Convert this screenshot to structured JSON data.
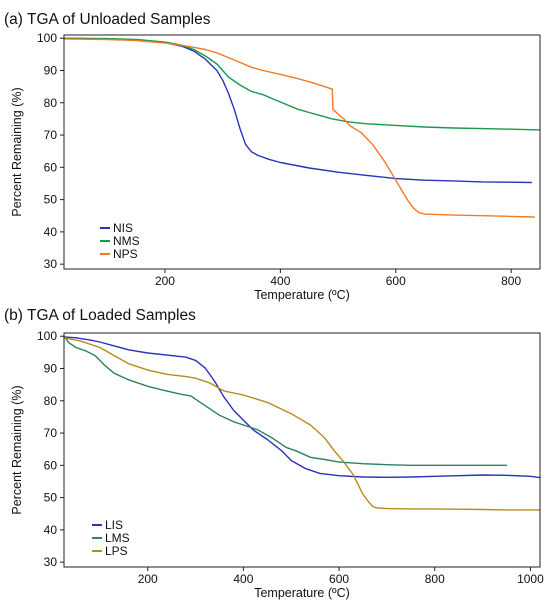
{
  "chart_data": [
    {
      "type": "line",
      "title": "(a) TGA of Unloaded Samples",
      "xlabel": "Temperature (ºC)",
      "ylabel": "Percent Remaining (%)",
      "xlim": [
        25,
        850
      ],
      "ylim": [
        28.5,
        101
      ],
      "xticks": [
        200,
        400,
        600,
        800
      ],
      "yticks": [
        30,
        40,
        50,
        60,
        70,
        80,
        90,
        100
      ],
      "grid": false,
      "legend_position": "bottom-left",
      "series": [
        {
          "name": "NIS",
          "color": "#2a33b8",
          "x": [
            25,
            100,
            150,
            200,
            230,
            250,
            270,
            290,
            300,
            310,
            320,
            330,
            340,
            350,
            360,
            380,
            400,
            450,
            500,
            550,
            600,
            650,
            700,
            750,
            800,
            835
          ],
          "y": [
            100,
            99.8,
            99.5,
            98.6,
            97.5,
            96,
            93.5,
            90,
            87,
            83,
            78,
            72,
            67,
            64.8,
            63.8,
            62.5,
            61.5,
            59.8,
            58.5,
            57.5,
            56.5,
            56,
            55.8,
            55.5,
            55.4,
            55.3
          ]
        },
        {
          "name": "NMS",
          "color": "#159a4f",
          "x": [
            25,
            100,
            150,
            200,
            230,
            250,
            270,
            290,
            300,
            310,
            330,
            350,
            370,
            390,
            410,
            430,
            450,
            470,
            490,
            520,
            550,
            600,
            650,
            700,
            750,
            800,
            850
          ],
          "y": [
            100,
            99.9,
            99.6,
            98.8,
            97.8,
            96.5,
            94.5,
            92,
            90,
            88,
            85.5,
            83.5,
            82.5,
            81,
            79.5,
            78,
            77,
            76,
            75,
            74,
            73.5,
            73,
            72.5,
            72.2,
            72,
            71.8,
            71.6
          ]
        },
        {
          "name": "NPS",
          "color": "#f07a2a",
          "x": [
            25,
            100,
            150,
            200,
            240,
            270,
            290,
            310,
            330,
            350,
            370,
            400,
            430,
            460,
            490,
            491,
            500,
            510,
            520,
            530,
            540,
            560,
            580,
            600,
            610,
            620,
            630,
            640,
            650,
            700,
            750,
            800,
            840
          ],
          "y": [
            99.8,
            99.6,
            99.3,
            98.5,
            97.5,
            96.5,
            95.5,
            94,
            92.5,
            91,
            90,
            88.8,
            87.5,
            86,
            84.2,
            78,
            76.5,
            75,
            73,
            71.8,
            70.8,
            67,
            62,
            56,
            53,
            50,
            47.5,
            46,
            45.5,
            45.2,
            45,
            44.8,
            44.6
          ]
        }
      ]
    },
    {
      "type": "line",
      "title": "(b) TGA of Loaded Samples",
      "xlabel": "Temperature (ºC)",
      "ylabel": "Percent Remaining (%)",
      "xlim": [
        25,
        1020
      ],
      "ylim": [
        28.5,
        101
      ],
      "xticks": [
        200,
        400,
        600,
        800,
        1000
      ],
      "yticks": [
        30,
        40,
        50,
        60,
        70,
        80,
        90,
        100
      ],
      "grid": false,
      "legend_position": "bottom-left",
      "series": [
        {
          "name": "LIS",
          "color": "#2a33b8",
          "x": [
            25,
            50,
            80,
            100,
            130,
            160,
            200,
            250,
            280,
            300,
            320,
            340,
            360,
            380,
            400,
            420,
            450,
            480,
            500,
            530,
            560,
            600,
            650,
            700,
            750,
            800,
            850,
            900,
            950,
            1000,
            1020
          ],
          "y": [
            99.8,
            99.5,
            98.8,
            98.2,
            97,
            95.8,
            94.8,
            94,
            93.5,
            92.5,
            90.2,
            86,
            81,
            77,
            74,
            71,
            68,
            64.5,
            61.5,
            59,
            57.5,
            56.8,
            56.4,
            56.3,
            56.4,
            56.6,
            56.8,
            57,
            56.9,
            56.6,
            56.2
          ]
        },
        {
          "name": "LMS",
          "color": "#2e8066",
          "x": [
            25,
            35,
            50,
            70,
            90,
            110,
            130,
            160,
            200,
            240,
            270,
            290,
            310,
            330,
            350,
            380,
            400,
            430,
            460,
            490,
            510,
            540,
            570,
            600,
            650,
            700,
            750,
            800,
            850,
            900,
            950
          ],
          "y": [
            100,
            98,
            96.5,
            95.5,
            94,
            91,
            88.5,
            86.5,
            84.5,
            83,
            82,
            81.5,
            79.5,
            77.5,
            75.5,
            73.5,
            72.5,
            71,
            68.5,
            65.5,
            64.5,
            62.5,
            61.8,
            61,
            60.5,
            60.2,
            60,
            60,
            60,
            60,
            60
          ]
        },
        {
          "name": "LPS",
          "color": "#b98a1e",
          "x": [
            25,
            60,
            100,
            130,
            160,
            200,
            240,
            280,
            300,
            330,
            360,
            400,
            450,
            500,
            540,
            570,
            590,
            610,
            630,
            640,
            650,
            660,
            670,
            680,
            700,
            750,
            800,
            850,
            900,
            950,
            1000,
            1020
          ],
          "y": [
            99.5,
            98.5,
            96.5,
            94,
            91.5,
            89.5,
            88.2,
            87.5,
            87,
            85.5,
            83,
            81.8,
            79.5,
            76,
            72.5,
            68.5,
            64.5,
            61,
            57,
            54,
            51,
            49,
            47.2,
            46.8,
            46.6,
            46.5,
            46.5,
            46.4,
            46.3,
            46.2,
            46.2,
            46.2
          ]
        }
      ]
    }
  ]
}
